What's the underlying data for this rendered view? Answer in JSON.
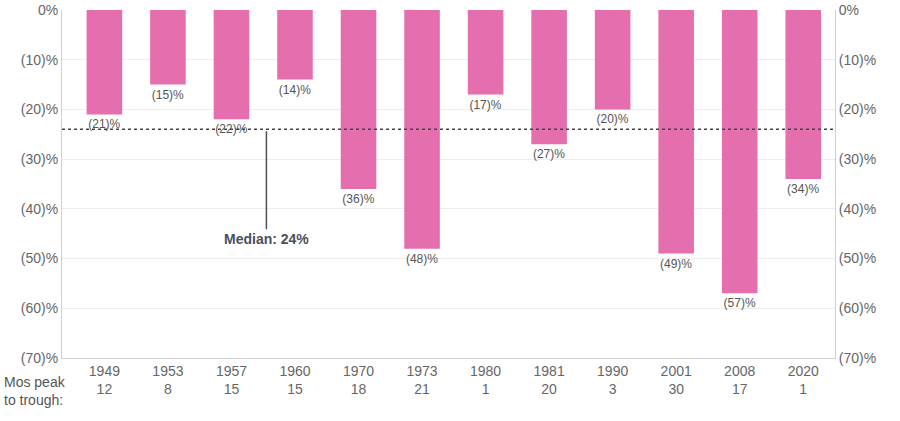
{
  "chart_data": {
    "type": "bar",
    "categories": [
      "1949",
      "1953",
      "1957",
      "1960",
      "1970",
      "1973",
      "1980",
      "1981",
      "1990",
      "2001",
      "2008",
      "2020"
    ],
    "values": [
      -21,
      -15,
      -22,
      -14,
      -36,
      -48,
      -17,
      -27,
      -20,
      -49,
      -57,
      -34
    ],
    "value_labels": [
      "(21)%",
      "(15)%",
      "(22)%",
      "(14)%",
      "(36)%",
      "(48)%",
      "(17)%",
      "(27)%",
      "(20)%",
      "(49)%",
      "(57)%",
      "(34)%"
    ],
    "data_labels": true,
    "color": "#e56fae",
    "months_label": "Mos peak\nto trough:",
    "months": [
      12,
      8,
      15,
      15,
      18,
      21,
      1,
      20,
      3,
      30,
      17,
      1
    ],
    "median": {
      "value": -24,
      "label": "Median: 24%"
    },
    "ylim": [
      -70,
      0
    ],
    "yticks": [
      {
        "value": 0,
        "label": "0%"
      },
      {
        "value": -10,
        "label": "(10)%"
      },
      {
        "value": -20,
        "label": "(20)%"
      },
      {
        "value": -30,
        "label": "(30)%"
      },
      {
        "value": -40,
        "label": "(40)%"
      },
      {
        "value": -50,
        "label": "(50)%"
      },
      {
        "value": -60,
        "label": "(60)%"
      },
      {
        "value": -70,
        "label": "(70)%"
      }
    ],
    "y2lim": [
      -70,
      0
    ],
    "y2ticks": [
      {
        "value": 0,
        "label": "0%"
      },
      {
        "value": -10,
        "label": "(10)%"
      },
      {
        "value": -20,
        "label": "(20)%"
      },
      {
        "value": -30,
        "label": "(30)%"
      },
      {
        "value": -40,
        "label": "(40)%"
      },
      {
        "value": -50,
        "label": "(50)%"
      },
      {
        "value": -60,
        "label": "(60)%"
      },
      {
        "value": -70,
        "label": "(70)%"
      }
    ],
    "grid": true
  }
}
